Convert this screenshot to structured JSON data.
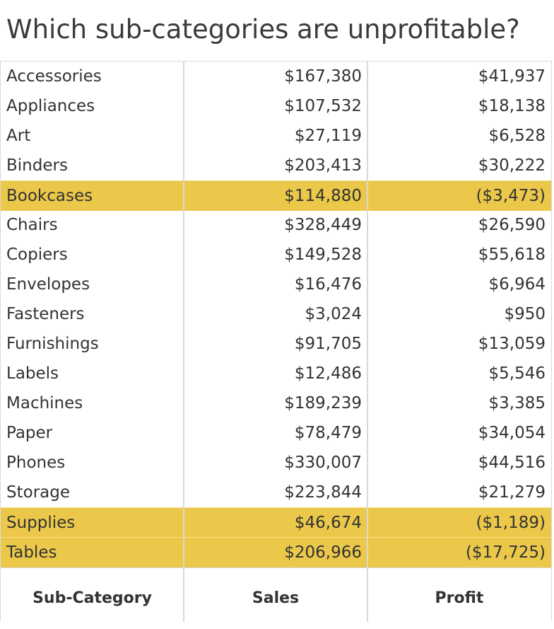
{
  "title": "Which sub-categories are unprofitable?",
  "colors": {
    "highlight": "#ebc84a",
    "gridline": "#d9d9d9",
    "text": "#333333"
  },
  "chart_data": {
    "type": "table",
    "title": "Which sub-categories are unprofitable?",
    "columns": [
      "Sub-Category",
      "Sales",
      "Profit"
    ],
    "rows": [
      {
        "sub_category": "Accessories",
        "sales": "$167,380",
        "profit": "$41,937",
        "sales_value": 167380,
        "profit_value": 41937,
        "unprofitable": false
      },
      {
        "sub_category": "Appliances",
        "sales": "$107,532",
        "profit": "$18,138",
        "sales_value": 107532,
        "profit_value": 18138,
        "unprofitable": false
      },
      {
        "sub_category": "Art",
        "sales": "$27,119",
        "profit": "$6,528",
        "sales_value": 27119,
        "profit_value": 6528,
        "unprofitable": false
      },
      {
        "sub_category": "Binders",
        "sales": "$203,413",
        "profit": "$30,222",
        "sales_value": 203413,
        "profit_value": 30222,
        "unprofitable": false
      },
      {
        "sub_category": "Bookcases",
        "sales": "$114,880",
        "profit": "($3,473)",
        "sales_value": 114880,
        "profit_value": -3473,
        "unprofitable": true
      },
      {
        "sub_category": "Chairs",
        "sales": "$328,449",
        "profit": "$26,590",
        "sales_value": 328449,
        "profit_value": 26590,
        "unprofitable": false
      },
      {
        "sub_category": "Copiers",
        "sales": "$149,528",
        "profit": "$55,618",
        "sales_value": 149528,
        "profit_value": 55618,
        "unprofitable": false
      },
      {
        "sub_category": "Envelopes",
        "sales": "$16,476",
        "profit": "$6,964",
        "sales_value": 16476,
        "profit_value": 6964,
        "unprofitable": false
      },
      {
        "sub_category": "Fasteners",
        "sales": "$3,024",
        "profit": "$950",
        "sales_value": 3024,
        "profit_value": 950,
        "unprofitable": false
      },
      {
        "sub_category": "Furnishings",
        "sales": "$91,705",
        "profit": "$13,059",
        "sales_value": 91705,
        "profit_value": 13059,
        "unprofitable": false
      },
      {
        "sub_category": "Labels",
        "sales": "$12,486",
        "profit": "$5,546",
        "sales_value": 12486,
        "profit_value": 5546,
        "unprofitable": false
      },
      {
        "sub_category": "Machines",
        "sales": "$189,239",
        "profit": "$3,385",
        "sales_value": 189239,
        "profit_value": 3385,
        "unprofitable": false
      },
      {
        "sub_category": "Paper",
        "sales": "$78,479",
        "profit": "$34,054",
        "sales_value": 78479,
        "profit_value": 34054,
        "unprofitable": false
      },
      {
        "sub_category": "Phones",
        "sales": "$330,007",
        "profit": "$44,516",
        "sales_value": 330007,
        "profit_value": 44516,
        "unprofitable": false
      },
      {
        "sub_category": "Storage",
        "sales": "$223,844",
        "profit": "$21,279",
        "sales_value": 223844,
        "profit_value": 21279,
        "unprofitable": false
      },
      {
        "sub_category": "Supplies",
        "sales": "$46,674",
        "profit": "($1,189)",
        "sales_value": 46674,
        "profit_value": -1189,
        "unprofitable": true
      },
      {
        "sub_category": "Tables",
        "sales": "$206,966",
        "profit": "($17,725)",
        "sales_value": 206966,
        "profit_value": -17725,
        "unprofitable": true
      }
    ]
  }
}
